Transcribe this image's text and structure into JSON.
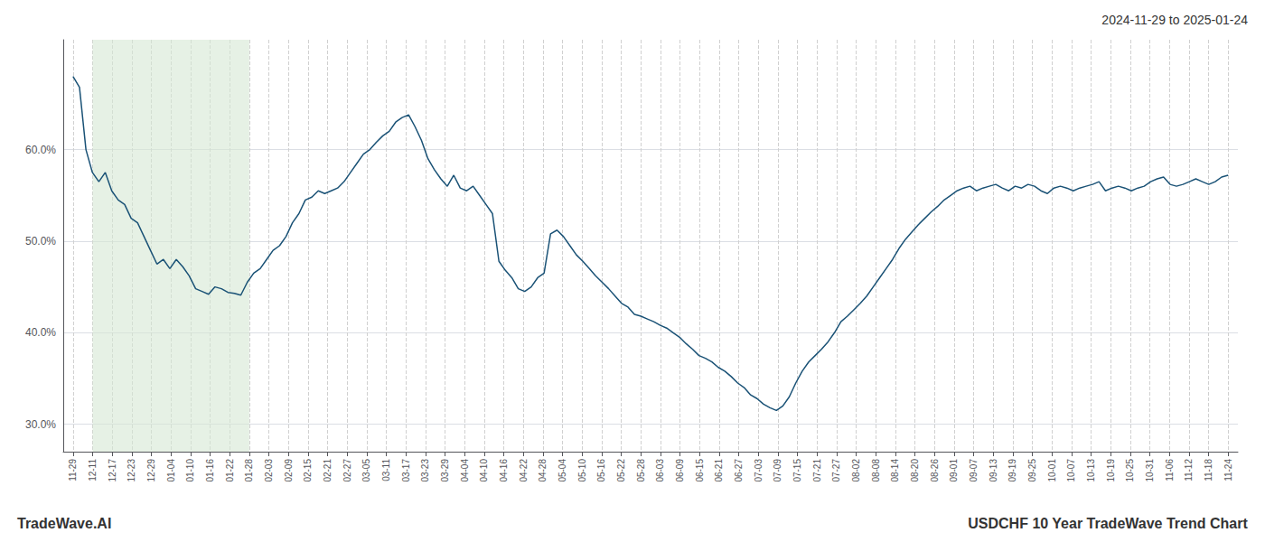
{
  "chart_data": {
    "type": "line",
    "title": "2024-11-29 to 2025-01-24",
    "annotations": [
      "TradeWave.AI",
      "USDCHF 10 Year TradeWave Trend Chart"
    ],
    "color": "#1a5276",
    "grid": true,
    "highlight": {
      "start": 1,
      "end": 9,
      "color": "#d5e8d4"
    },
    "xlim": [
      -0.5,
      59.5
    ],
    "xticks": [
      {
        "value": 0,
        "label": "11-29"
      },
      {
        "value": 1,
        "label": "12-11"
      },
      {
        "value": 2,
        "label": "12-17"
      },
      {
        "value": 3,
        "label": "12-23"
      },
      {
        "value": 4,
        "label": "12-29"
      },
      {
        "value": 5,
        "label": "01-04"
      },
      {
        "value": 6,
        "label": "01-10"
      },
      {
        "value": 7,
        "label": "01-16"
      },
      {
        "value": 8,
        "label": "01-22"
      },
      {
        "value": 9,
        "label": "01-28"
      },
      {
        "value": 10,
        "label": "02-03"
      },
      {
        "value": 11,
        "label": "02-09"
      },
      {
        "value": 12,
        "label": "02-15"
      },
      {
        "value": 13,
        "label": "02-21"
      },
      {
        "value": 14,
        "label": "02-27"
      },
      {
        "value": 15,
        "label": "03-05"
      },
      {
        "value": 16,
        "label": "03-11"
      },
      {
        "value": 17,
        "label": "03-17"
      },
      {
        "value": 18,
        "label": "03-23"
      },
      {
        "value": 19,
        "label": "03-29"
      },
      {
        "value": 20,
        "label": "04-04"
      },
      {
        "value": 21,
        "label": "04-10"
      },
      {
        "value": 22,
        "label": "04-16"
      },
      {
        "value": 23,
        "label": "04-22"
      },
      {
        "value": 24,
        "label": "04-28"
      },
      {
        "value": 25,
        "label": "05-04"
      },
      {
        "value": 26,
        "label": "05-10"
      },
      {
        "value": 27,
        "label": "05-16"
      },
      {
        "value": 28,
        "label": "05-22"
      },
      {
        "value": 29,
        "label": "05-28"
      },
      {
        "value": 30,
        "label": "06-03"
      },
      {
        "value": 31,
        "label": "06-09"
      },
      {
        "value": 32,
        "label": "06-15"
      },
      {
        "value": 33,
        "label": "06-21"
      },
      {
        "value": 34,
        "label": "06-27"
      },
      {
        "value": 35,
        "label": "07-03"
      },
      {
        "value": 36,
        "label": "07-09"
      },
      {
        "value": 37,
        "label": "07-15"
      },
      {
        "value": 38,
        "label": "07-21"
      },
      {
        "value": 39,
        "label": "07-27"
      },
      {
        "value": 40,
        "label": "08-02"
      },
      {
        "value": 41,
        "label": "08-08"
      },
      {
        "value": 42,
        "label": "08-14"
      },
      {
        "value": 43,
        "label": "08-20"
      },
      {
        "value": 44,
        "label": "08-26"
      },
      {
        "value": 45,
        "label": "09-01"
      },
      {
        "value": 46,
        "label": "09-07"
      },
      {
        "value": 47,
        "label": "09-13"
      },
      {
        "value": 48,
        "label": "09-19"
      },
      {
        "value": 49,
        "label": "09-25"
      },
      {
        "value": 50,
        "label": "10-01"
      },
      {
        "value": 51,
        "label": "10-07"
      },
      {
        "value": 52,
        "label": "10-13"
      },
      {
        "value": 53,
        "label": "10-19"
      },
      {
        "value": 54,
        "label": "10-25"
      },
      {
        "value": 55,
        "label": "10-31"
      },
      {
        "value": 56,
        "label": "11-06"
      },
      {
        "value": 57,
        "label": "11-12"
      },
      {
        "value": 58,
        "label": "11-18"
      },
      {
        "value": 59,
        "label": "11-24"
      }
    ],
    "ylim": [
      0.27,
      0.72
    ],
    "yticks": [
      {
        "value": 0.3,
        "label": "30.0%"
      },
      {
        "value": 0.4,
        "label": "40.0%"
      },
      {
        "value": 0.5,
        "label": "50.0%"
      },
      {
        "value": 0.6,
        "label": "60.0%"
      }
    ],
    "x": [
      0,
      0.3296,
      0.6592,
      0.9888,
      1.3184,
      1.648,
      1.9777,
      2.3073,
      2.6369,
      2.9665,
      3.2961,
      3.6257,
      3.9553,
      4.2849,
      4.6145,
      4.9441,
      5.2737,
      5.6034,
      5.933,
      6.2626,
      6.5922,
      6.9218,
      7.2514,
      7.581,
      7.9106,
      8.2402,
      8.5698,
      8.8994,
      9.2291,
      9.5587,
      9.8883,
      10.2179,
      10.5475,
      10.8771,
      11.2067,
      11.5363,
      11.8659,
      12.1955,
      12.5251,
      12.8547,
      13.1844,
      13.514,
      13.8436,
      14.1732,
      14.5028,
      14.8324,
      15.162,
      15.4916,
      15.8212,
      16.1508,
      16.4804,
      16.8101,
      17.1397,
      17.4693,
      17.7989,
      18.1285,
      18.4581,
      18.7877,
      19.1173,
      19.4469,
      19.7765,
      20.1061,
      20.4358,
      20.7654,
      21.095,
      21.4246,
      21.7542,
      22.0838,
      22.4134,
      22.743,
      23.0726,
      23.4022,
      23.7318,
      24.0615,
      24.3911,
      24.7207,
      25.0503,
      25.3799,
      25.7095,
      26.0391,
      26.3687,
      26.6983,
      27.0279,
      27.3575,
      27.6872,
      28.0168,
      28.3464,
      28.676,
      29.0056,
      29.3352,
      29.6648,
      29.9944,
      30.324,
      30.6536,
      30.9832,
      31.3128,
      31.6425,
      31.9721,
      32.3017,
      32.6313,
      32.9609,
      33.2905,
      33.6201,
      33.9497,
      34.2793,
      34.6089,
      34.9385,
      35.2682,
      35.5978,
      35.9274,
      36.257,
      36.5866,
      36.9162,
      37.2458,
      37.5754,
      37.905,
      38.2346,
      38.5642,
      38.8939,
      39.2235,
      39.5531,
      39.8827,
      40.2123,
      40.5419,
      40.8715,
      41.2011,
      41.5307,
      41.8603,
      42.1899,
      42.5196,
      42.8492,
      43.1788,
      43.5084,
      43.838,
      44.1676,
      44.4972,
      44.8268,
      45.1564,
      45.486,
      45.8156,
      46.1453,
      46.4749,
      46.8045,
      47.1341,
      47.4637,
      47.7933,
      48.1229,
      48.4525,
      48.7821,
      49.1117,
      49.4413,
      49.7709,
      50.1006,
      50.4302,
      50.7598,
      51.0894,
      51.419,
      51.7486,
      52.0782,
      52.4078,
      52.7374,
      53.067,
      53.3966,
      53.7263,
      54.0559,
      54.3855,
      54.7151,
      55.0447,
      55.3743,
      55.7039,
      56.0335,
      56.3631,
      56.6927,
      57.0223,
      57.352,
      57.6816,
      58.0112,
      58.3408,
      58.6704,
      59
    ],
    "values": [
      0.68,
      0.668,
      0.6,
      0.575,
      0.565,
      0.575,
      0.555,
      0.545,
      0.54,
      0.525,
      0.52,
      0.505,
      0.49,
      0.475,
      0.48,
      0.47,
      0.48,
      0.472,
      0.462,
      0.448,
      0.445,
      0.442,
      0.45,
      0.448,
      0.444,
      0.443,
      0.441,
      0.455,
      0.465,
      0.47,
      0.48,
      0.49,
      0.495,
      0.505,
      0.52,
      0.53,
      0.545,
      0.548,
      0.555,
      0.552,
      0.555,
      0.558,
      0.565,
      0.575,
      0.585,
      0.595,
      0.6,
      0.608,
      0.615,
      0.62,
      0.63,
      0.635,
      0.638,
      0.625,
      0.61,
      0.59,
      0.578,
      0.568,
      0.56,
      0.572,
      0.558,
      0.555,
      0.56,
      0.55,
      0.54,
      0.53,
      0.478,
      0.468,
      0.46,
      0.448,
      0.445,
      0.45,
      0.46,
      0.465,
      0.508,
      0.512,
      0.505,
      0.495,
      0.485,
      0.478,
      0.47,
      0.462,
      0.455,
      0.448,
      0.44,
      0.432,
      0.428,
      0.42,
      0.418,
      0.415,
      0.412,
      0.408,
      0.405,
      0.4,
      0.395,
      0.388,
      0.382,
      0.375,
      0.372,
      0.368,
      0.362,
      0.358,
      0.352,
      0.345,
      0.34,
      0.332,
      0.328,
      0.322,
      0.318,
      0.315,
      0.32,
      0.33,
      0.345,
      0.358,
      0.368,
      0.375,
      0.382,
      0.39,
      0.4,
      0.412,
      0.418,
      0.425,
      0.432,
      0.44,
      0.45,
      0.46,
      0.47,
      0.48,
      0.492,
      0.502,
      0.51,
      0.518,
      0.525,
      0.532,
      0.538,
      0.545,
      0.55,
      0.555,
      0.558,
      0.56,
      0.555,
      0.558,
      0.56,
      0.562,
      0.558,
      0.555,
      0.56,
      0.558,
      0.562,
      0.56,
      0.555,
      0.552,
      0.558,
      0.56,
      0.558,
      0.555,
      0.558,
      0.56,
      0.562,
      0.565,
      0.555,
      0.558,
      0.56,
      0.558,
      0.555,
      0.558,
      0.56,
      0.565,
      0.568,
      0.57,
      0.562,
      0.56,
      0.562,
      0.565,
      0.568,
      0.565,
      0.562,
      0.565,
      0.57,
      0.572
    ]
  }
}
